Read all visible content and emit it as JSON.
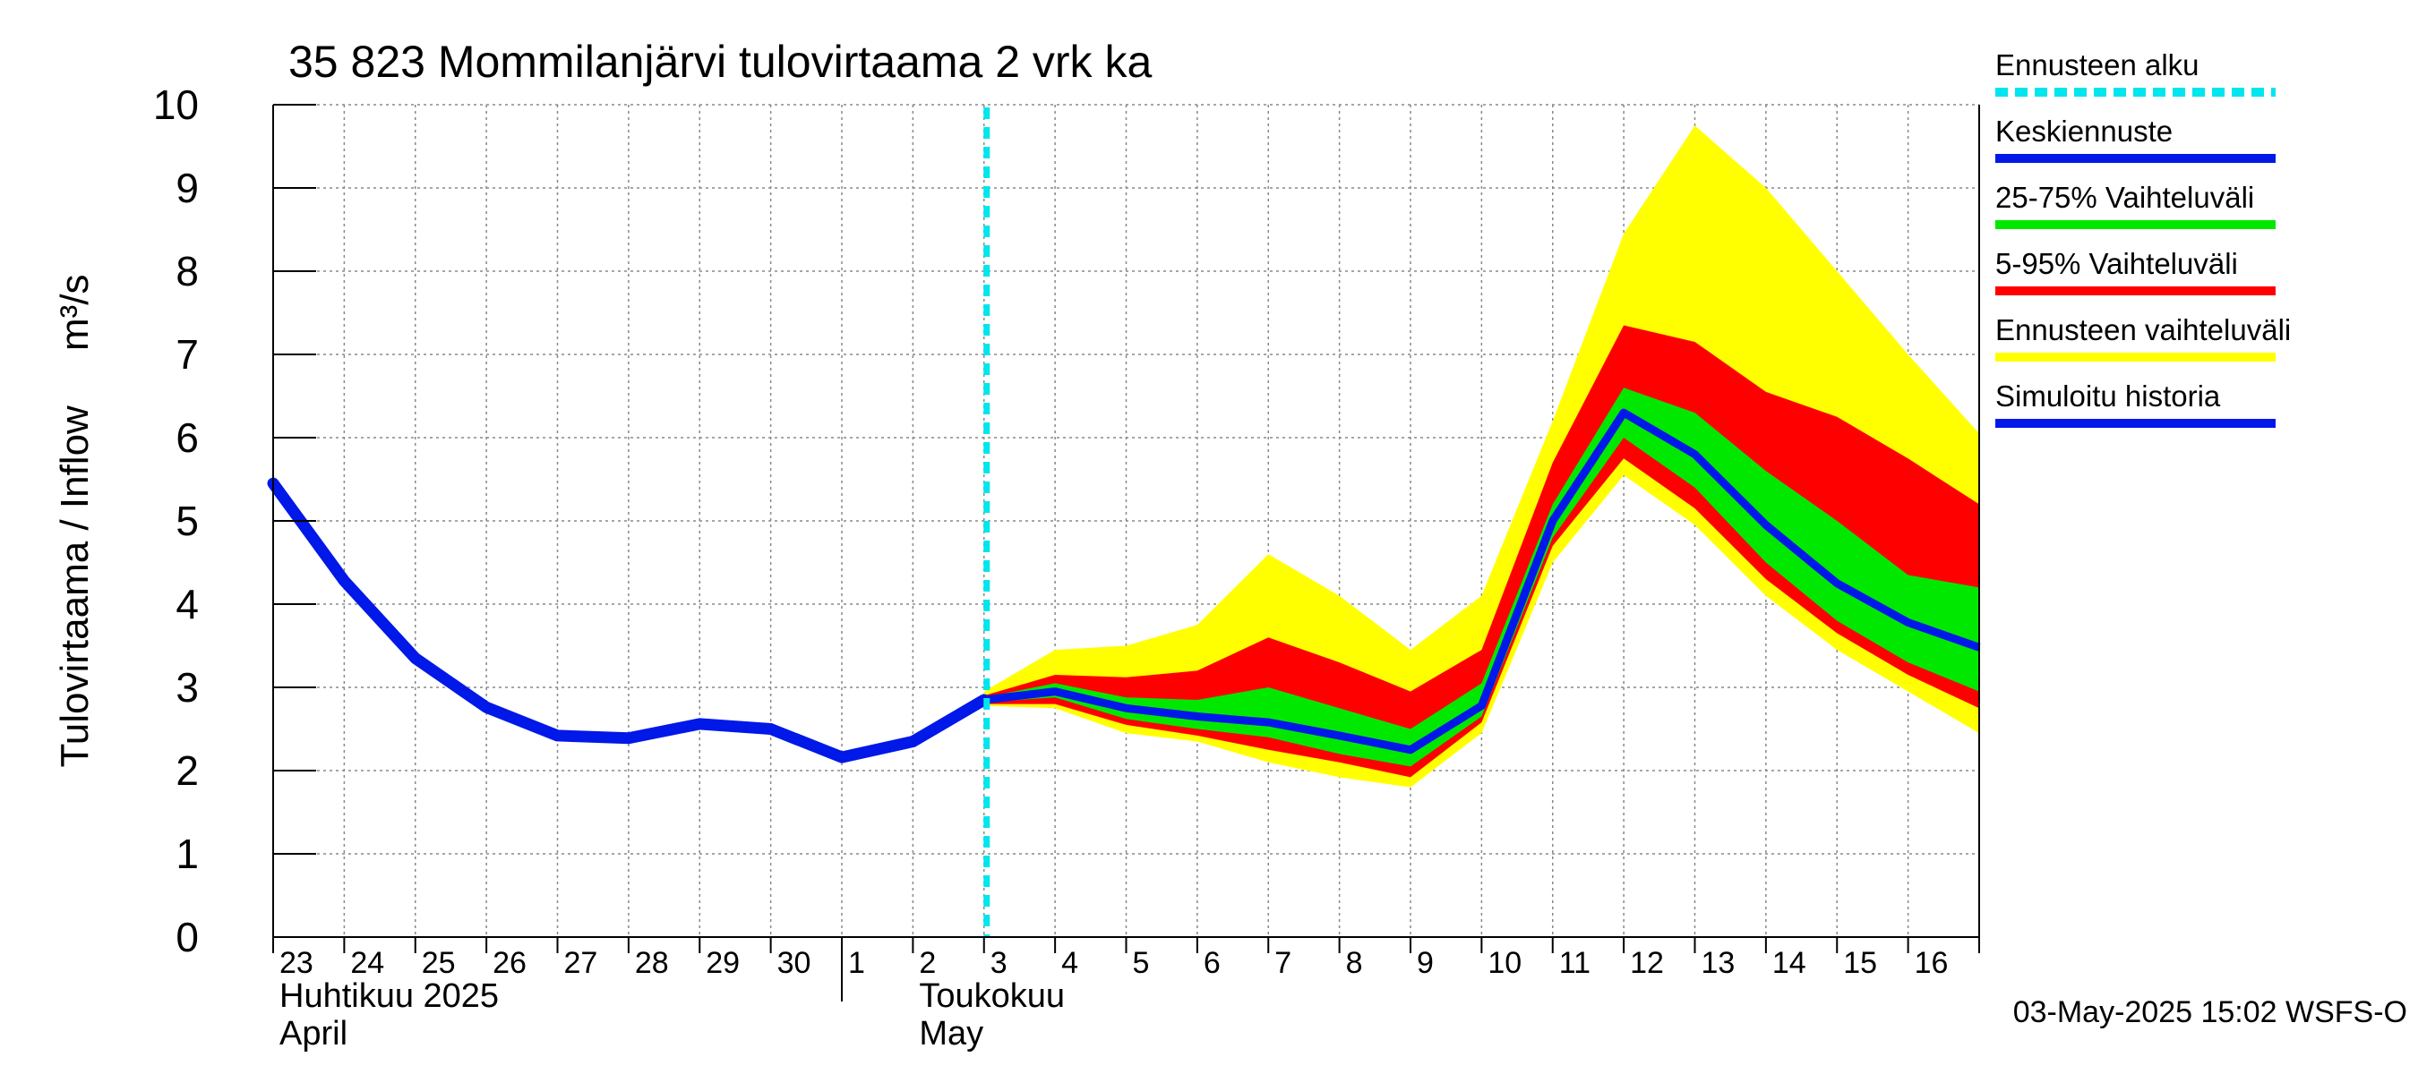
{
  "chart_data": {
    "type": "area",
    "title": "35 823 Mommilanjärvi tulovirtaama 2 vrk ka",
    "ylabel": "Tulovirtaama / Inflow     m³/s",
    "ylim": [
      0,
      10
    ],
    "yticks": [
      "0",
      "1",
      "2",
      "3",
      "4",
      "5",
      "6",
      "7",
      "8",
      "9",
      "10"
    ],
    "x_day_labels": [
      "23",
      "24",
      "25",
      "26",
      "27",
      "28",
      "29",
      "30",
      "1",
      "2",
      "3",
      "4",
      "5",
      "6",
      "7",
      "8",
      "9",
      "10",
      "11",
      "12",
      "13",
      "14",
      "15",
      "16"
    ],
    "month_labels": [
      {
        "line1": "Huhtikuu  2025",
        "line2": "April"
      },
      {
        "line1": "Toukokuu",
        "line2": "May"
      }
    ],
    "forecast_start_day": 10,
    "history": {
      "name": "Simuloitu historia",
      "x": [
        0,
        1,
        2,
        3,
        4,
        5,
        6,
        7,
        8,
        9,
        10
      ],
      "values": [
        5.45,
        4.28,
        3.35,
        2.76,
        2.42,
        2.39,
        2.56,
        2.5,
        2.16,
        2.35,
        2.85
      ]
    },
    "forecast_x": [
      10,
      11,
      12,
      13,
      14,
      15,
      16,
      17,
      18,
      19,
      20,
      21,
      22,
      23,
      24
    ],
    "median": {
      "name": "Keskiennuste",
      "values": [
        2.85,
        2.95,
        2.75,
        2.65,
        2.58,
        2.42,
        2.25,
        2.78,
        5.0,
        6.3,
        5.8,
        4.95,
        4.25,
        3.78,
        3.48
      ]
    },
    "band_25_75": {
      "name": "25-75% Vaihteluväli",
      "low": [
        2.82,
        2.88,
        2.62,
        2.5,
        2.4,
        2.2,
        2.05,
        2.65,
        4.8,
        6.0,
        5.4,
        4.5,
        3.8,
        3.3,
        2.95
      ],
      "high": [
        2.88,
        3.05,
        2.88,
        2.85,
        3.0,
        2.75,
        2.5,
        3.05,
        5.2,
        6.6,
        6.3,
        5.6,
        5.0,
        4.35,
        4.2
      ]
    },
    "band_5_95": {
      "name": "5-95% Vaihteluväli",
      "low": [
        2.8,
        2.8,
        2.55,
        2.42,
        2.25,
        2.1,
        1.92,
        2.58,
        4.7,
        5.75,
        5.15,
        4.3,
        3.65,
        3.15,
        2.75
      ],
      "high": [
        2.9,
        3.15,
        3.12,
        3.2,
        3.6,
        3.3,
        2.95,
        3.45,
        5.7,
        7.35,
        7.15,
        6.55,
        6.25,
        5.75,
        5.2
      ]
    },
    "band_full": {
      "name": "Ennusteen vaihteluväli",
      "low": [
        2.78,
        2.75,
        2.45,
        2.35,
        2.1,
        1.92,
        1.8,
        2.45,
        4.5,
        5.55,
        4.95,
        4.1,
        3.45,
        2.95,
        2.45
      ],
      "high": [
        2.95,
        3.45,
        3.5,
        3.75,
        4.6,
        4.1,
        3.45,
        4.1,
        6.2,
        8.45,
        9.75,
        9.0,
        8.0,
        7.0,
        6.05
      ]
    },
    "legend": [
      {
        "label": "Ennusteen alku",
        "color": "#00e5ee",
        "style": "dashed"
      },
      {
        "label": "Keskiennuste",
        "color": "#0018e8",
        "style": "solid"
      },
      {
        "label": "25-75% Vaihteluväli",
        "color": "#00e800",
        "style": "solid"
      },
      {
        "label": "5-95% Vaihteluväli",
        "color": "#ff0000",
        "style": "solid"
      },
      {
        "label": "Ennusteen vaihteluväli",
        "color": "#ffff00",
        "style": "solid"
      },
      {
        "label": "Simuloitu historia",
        "color": "#0018e8",
        "style": "solid"
      }
    ],
    "timestamp": "03-May-2025 15:02 WSFS-O",
    "colors": {
      "history": "#0018e8",
      "median": "#0018e8",
      "band_25_75": "#00e800",
      "band_5_95": "#ff0000",
      "band_full": "#ffff00",
      "forecast_start": "#00e5ee",
      "grid": "#888888"
    }
  }
}
